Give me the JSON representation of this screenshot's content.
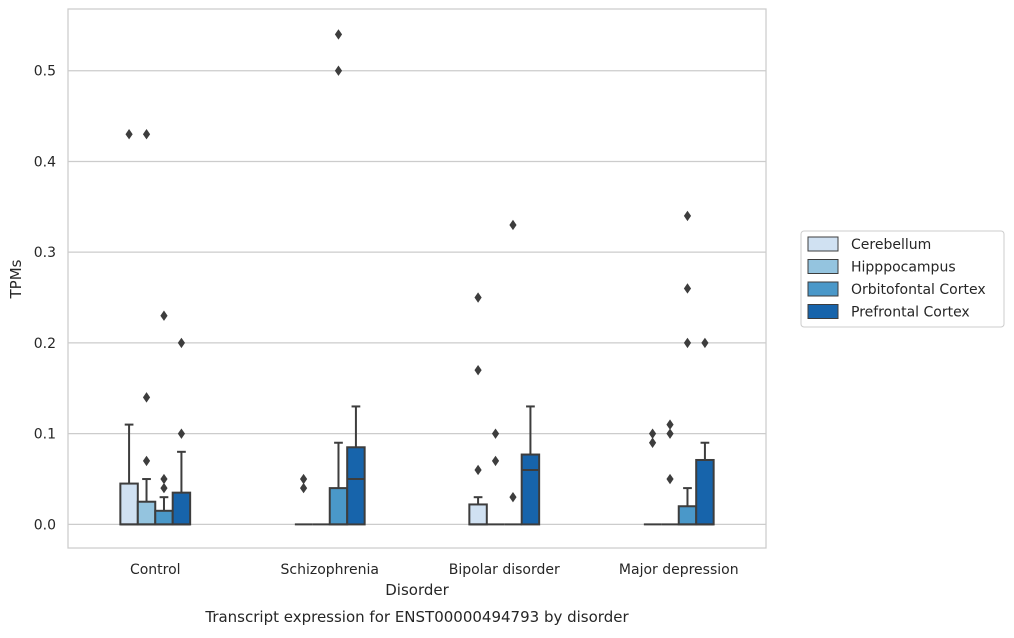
{
  "chart_data": {
    "type": "box",
    "title": "",
    "caption": "Transcript expression for ENST00000494793 by disorder",
    "xlabel": "Disorder",
    "ylabel": "TPMs",
    "ylim": [
      -0.026,
      0.568
    ],
    "yticks": [
      0.0,
      0.1,
      0.2,
      0.3,
      0.4,
      0.5
    ],
    "ytick_labels": [
      "0.0",
      "0.1",
      "0.2",
      "0.3",
      "0.4",
      "0.5"
    ],
    "categories": [
      "Control",
      "Schizophrenia",
      "Bipolar disorder",
      "Major depression"
    ],
    "grid": true,
    "legend_position": "right",
    "series": [
      {
        "name": "Cerebellum",
        "color": "#d0e1f2",
        "boxes": [
          {
            "q1": 0.0,
            "median": 0.0,
            "q3": 0.045,
            "whisker_low": 0.0,
            "whisker_high": 0.11,
            "outliers": [
              0.43
            ]
          },
          {
            "q1": 0.0,
            "median": 0.0,
            "q3": 0.0,
            "whisker_low": 0.0,
            "whisker_high": 0.0,
            "outliers": [
              0.04,
              0.05
            ]
          },
          {
            "q1": 0.0,
            "median": 0.0,
            "q3": 0.022,
            "whisker_low": 0.0,
            "whisker_high": 0.03,
            "outliers": [
              0.06,
              0.17,
              0.25
            ]
          },
          {
            "q1": 0.0,
            "median": 0.0,
            "q3": 0.0,
            "whisker_low": 0.0,
            "whisker_high": 0.0,
            "outliers": [
              0.09,
              0.1
            ]
          }
        ]
      },
      {
        "name": "Hipppocampus",
        "color": "#94c4df",
        "boxes": [
          {
            "q1": 0.0,
            "median": 0.0,
            "q3": 0.025,
            "whisker_low": 0.0,
            "whisker_high": 0.05,
            "outliers": [
              0.07,
              0.14,
              0.43
            ]
          },
          {
            "q1": 0.0,
            "median": 0.0,
            "q3": 0.0,
            "whisker_low": 0.0,
            "whisker_high": 0.0,
            "outliers": []
          },
          {
            "q1": 0.0,
            "median": 0.0,
            "q3": 0.0,
            "whisker_low": 0.0,
            "whisker_high": 0.0,
            "outliers": [
              0.07,
              0.1
            ]
          },
          {
            "q1": 0.0,
            "median": 0.0,
            "q3": 0.0,
            "whisker_low": 0.0,
            "whisker_high": 0.0,
            "outliers": [
              0.05,
              0.1,
              0.11
            ]
          }
        ]
      },
      {
        "name": "Orbitofontal Cortex",
        "color": "#4a98c9",
        "boxes": [
          {
            "q1": 0.0,
            "median": 0.0,
            "q3": 0.015,
            "whisker_low": 0.0,
            "whisker_high": 0.03,
            "outliers": [
              0.04,
              0.05,
              0.23
            ]
          },
          {
            "q1": 0.0,
            "median": 0.0,
            "q3": 0.04,
            "whisker_low": 0.0,
            "whisker_high": 0.09,
            "outliers": [
              0.5,
              0.54
            ]
          },
          {
            "q1": 0.0,
            "median": 0.0,
            "q3": 0.0,
            "whisker_low": 0.0,
            "whisker_high": 0.0,
            "outliers": [
              0.03,
              0.33
            ]
          },
          {
            "q1": 0.0,
            "median": 0.0,
            "q3": 0.02,
            "whisker_low": 0.0,
            "whisker_high": 0.04,
            "outliers": [
              0.2,
              0.26,
              0.34
            ]
          }
        ]
      },
      {
        "name": "Prefrontal Cortex",
        "color": "#1764ab",
        "boxes": [
          {
            "q1": 0.0,
            "median": 0.0,
            "q3": 0.035,
            "whisker_low": 0.0,
            "whisker_high": 0.08,
            "outliers": [
              0.1,
              0.2
            ]
          },
          {
            "q1": 0.0,
            "median": 0.05,
            "q3": 0.085,
            "whisker_low": 0.0,
            "whisker_high": 0.13,
            "outliers": []
          },
          {
            "q1": 0.0,
            "median": 0.06,
            "q3": 0.077,
            "whisker_low": 0.0,
            "whisker_high": 0.13,
            "outliers": []
          },
          {
            "q1": 0.0,
            "median": 0.0,
            "q3": 0.071,
            "whisker_low": 0.0,
            "whisker_high": 0.09,
            "outliers": [
              0.2
            ]
          }
        ]
      }
    ]
  }
}
